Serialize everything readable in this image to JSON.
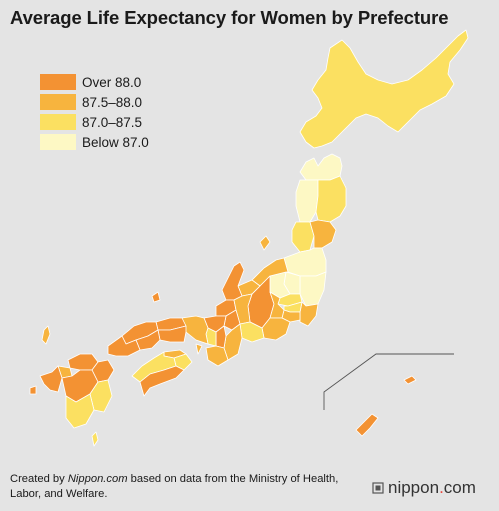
{
  "title": "Average Life Expectancy for Women by Prefecture",
  "legend": [
    {
      "label": "Over 88.0",
      "color": "#f39233"
    },
    {
      "label": "87.5–88.0",
      "color": "#f7b43e"
    },
    {
      "label": "87.0–87.5",
      "color": "#fbe061"
    },
    {
      "label": "Below 87.0",
      "color": "#fdf8c4"
    }
  ],
  "footer": {
    "prefix": "Created by ",
    "source": "Nippon.com",
    "suffix": " based on data from the Ministry of Health, Labor, and Welfare."
  },
  "brand": {
    "name": "nippon",
    "dot": ".",
    "tld": "com"
  },
  "colors": {
    "background": "#e4e4e4",
    "border": "#ffffff",
    "inset_line": "#555555"
  }
}
